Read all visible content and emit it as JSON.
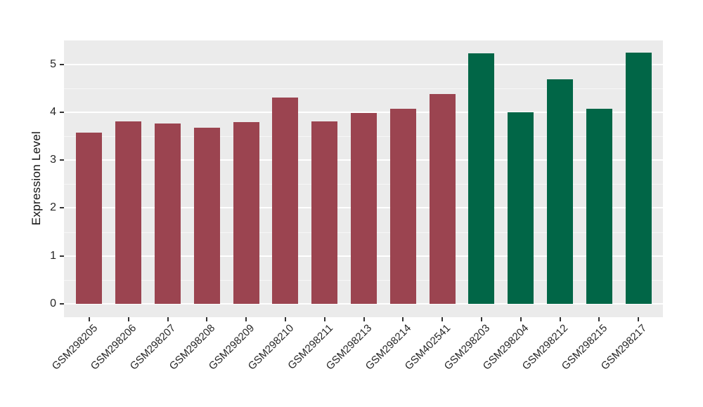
{
  "figure": {
    "background": "#FFFFFF"
  },
  "chart_data": {
    "type": "bar",
    "title": "",
    "xlabel": "",
    "ylabel": "Expression Level",
    "ylim": [
      0,
      5.5
    ],
    "yticks": [
      0,
      1,
      2,
      3,
      4,
      5
    ],
    "legend": "none",
    "grid": "major white lines at integers, faint minor lines at 0.5 steps, on gray panel",
    "panel_background": "#EBEBEB",
    "grid_major_color": "#FFFFFF",
    "grid_minor_color": "#FFFFFF",
    "tick_color": "#333333",
    "x_tick_rotation": 45,
    "categories": [
      "GSM298205",
      "GSM298206",
      "GSM298207",
      "GSM298208",
      "GSM298209",
      "GSM298210",
      "GSM298211",
      "GSM298213",
      "GSM298214",
      "GSM402541",
      "GSM298203",
      "GSM298204",
      "GSM298212",
      "GSM298215",
      "GSM298217"
    ],
    "values": [
      3.57,
      3.8,
      3.77,
      3.68,
      3.79,
      4.3,
      3.81,
      3.98,
      4.07,
      4.38,
      5.23,
      3.99,
      4.69,
      4.07,
      5.24
    ],
    "groups": [
      "group1",
      "group1",
      "group1",
      "group1",
      "group1",
      "group1",
      "group1",
      "group1",
      "group1",
      "group1",
      "group2",
      "group2",
      "group2",
      "group2",
      "group2"
    ],
    "group_colors": {
      "group1": "#9B4450",
      "group2": "#016647"
    }
  }
}
